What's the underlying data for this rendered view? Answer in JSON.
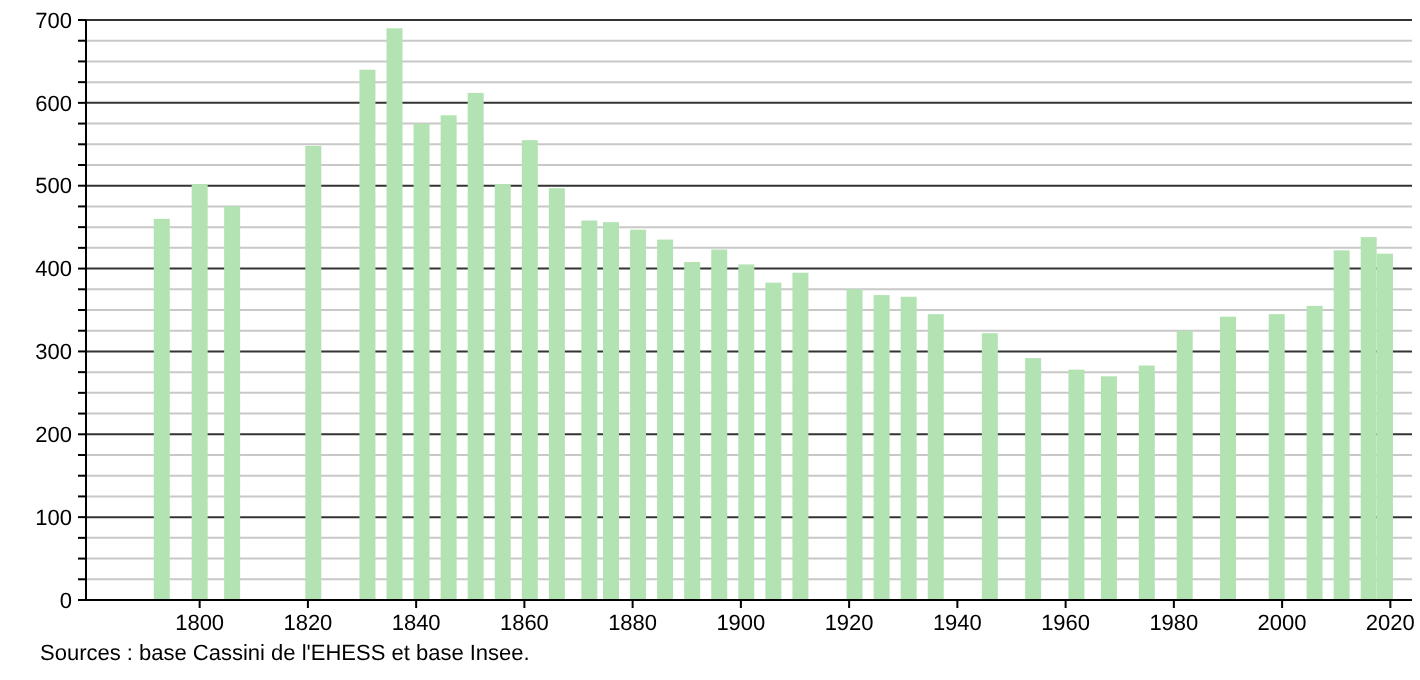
{
  "chart_data": {
    "type": "bar",
    "x": [
      1793,
      1800,
      1806,
      1821,
      1831,
      1836,
      1841,
      1846,
      1851,
      1856,
      1861,
      1866,
      1872,
      1876,
      1881,
      1886,
      1891,
      1896,
      1901,
      1906,
      1911,
      1921,
      1926,
      1931,
      1936,
      1946,
      1954,
      1962,
      1968,
      1975,
      1982,
      1990,
      1999,
      2006,
      2011,
      2016,
      2019
    ],
    "values": [
      460,
      502,
      475,
      548,
      640,
      690,
      575,
      585,
      612,
      502,
      555,
      497,
      458,
      456,
      447,
      435,
      408,
      423,
      405,
      383,
      395,
      375,
      368,
      366,
      345,
      322,
      292,
      278,
      270,
      283,
      325,
      342,
      345,
      355,
      422,
      438,
      418
    ],
    "color": "#b3e3b3",
    "xlim": [
      1779,
      2024
    ],
    "xticks": [
      1800,
      1820,
      1840,
      1860,
      1880,
      1900,
      1920,
      1940,
      1960,
      1980,
      2000,
      2020
    ],
    "ylim": [
      0,
      700
    ],
    "yticks": [
      0,
      {
        "value": 25,
        "label": null
      },
      {
        "value": 50,
        "label": null
      },
      {
        "value": 75,
        "label": null
      },
      100,
      {
        "value": 125,
        "label": null
      },
      {
        "value": 150,
        "label": null
      },
      {
        "value": 175,
        "label": null
      },
      200,
      {
        "value": 225,
        "label": null
      },
      {
        "value": 250,
        "label": null
      },
      {
        "value": 275,
        "label": null
      },
      300,
      {
        "value": 325,
        "label": null
      },
      {
        "value": 350,
        "label": null
      },
      {
        "value": 375,
        "label": null
      },
      400,
      {
        "value": 425,
        "label": null
      },
      {
        "value": 450,
        "label": null
      },
      {
        "value": 475,
        "label": null
      },
      500,
      {
        "value": 525,
        "label": null
      },
      {
        "value": 550,
        "label": null
      },
      {
        "value": 575,
        "label": null
      },
      600,
      {
        "value": 625,
        "label": null
      },
      {
        "value": 650,
        "label": null
      },
      {
        "value": 675,
        "label": null
      },
      700
    ],
    "grid": "y",
    "annotations": [
      "Sources : base Cassini de l'EHESS et base Insee."
    ]
  }
}
